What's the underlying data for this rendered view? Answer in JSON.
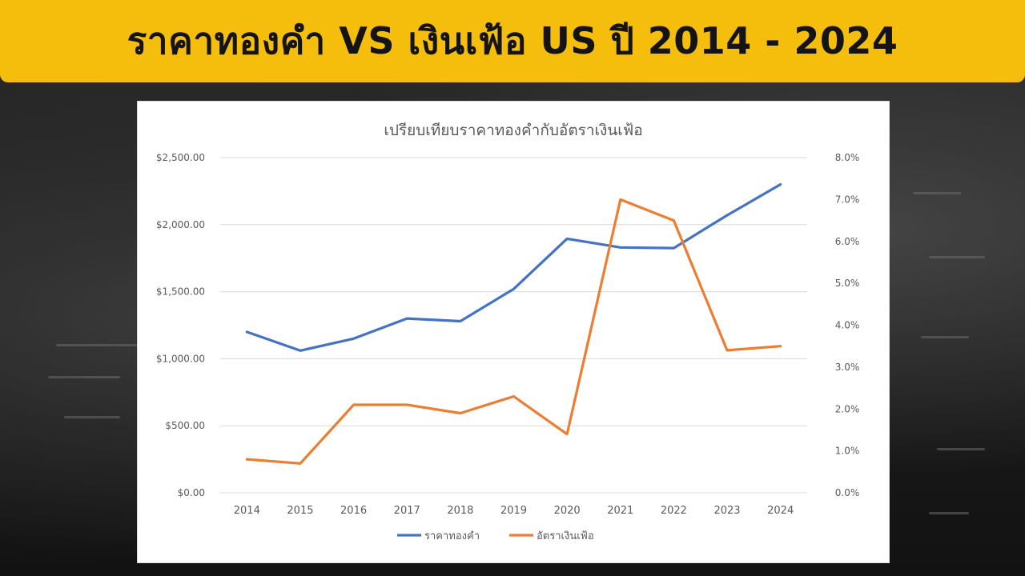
{
  "banner": {
    "title": "ราคาทองคำ VS เงินเฟ้อ US ปี 2014 - 2024"
  },
  "chart_data": {
    "type": "line",
    "title": "เปรียบเทียบราคาทองคำกับอัตราเงินเฟ้อ",
    "categories": [
      "2014",
      "2015",
      "2016",
      "2017",
      "2018",
      "2019",
      "2020",
      "2021",
      "2022",
      "2023",
      "2024"
    ],
    "series": [
      {
        "name": "ราคาทองคำ",
        "axis": "left",
        "color": "#4472c4",
        "values": [
          1200,
          1060,
          1150,
          1300,
          1280,
          1520,
          1895,
          1830,
          1825,
          2070,
          2300
        ]
      },
      {
        "name": "อัตราเงินเฟ้อ",
        "axis": "right",
        "color": "#ed7d31",
        "values": [
          0.8,
          0.7,
          2.1,
          2.1,
          1.9,
          2.3,
          1.4,
          7.0,
          6.5,
          3.4,
          3.5
        ]
      }
    ],
    "y_left": {
      "ylim": [
        0,
        2500
      ],
      "ticks": [
        "$0.00",
        "$500.00",
        "$1,000.00",
        "$1,500.00",
        "$2,000.00",
        "$2,500.00"
      ]
    },
    "y_right": {
      "ylim": [
        0,
        8
      ],
      "ticks": [
        "0.0%",
        "1.0%",
        "2.0%",
        "3.0%",
        "4.0%",
        "5.0%",
        "6.0%",
        "7.0%",
        "8.0%"
      ]
    },
    "grid": true,
    "legend_position": "bottom"
  }
}
